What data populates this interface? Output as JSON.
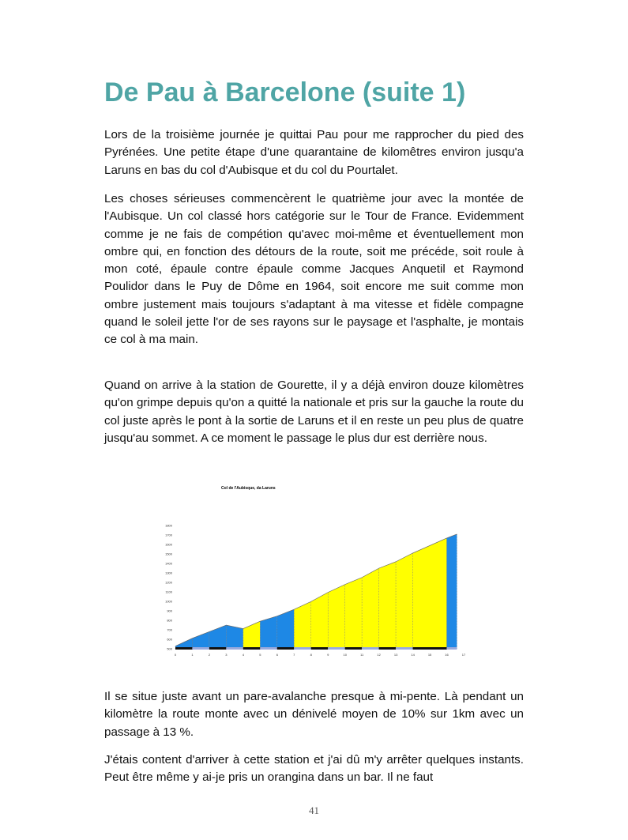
{
  "title": "De Pau à Barcelone (suite 1)",
  "paragraphs": [
    "Lors de la troisième journée je quittai Pau pour me rapprocher du pied des Pyrénées. Une petite étape d'une quarantaine de kilomêtres environ jusqu'a Laruns en bas du col d'Aubisque et du col du Pourtalet.",
    "Les choses sérieuses commencèrent le quatrième jour avec la montée de l'Aubisque. Un col classé hors catégorie sur le Tour de France. Evidemment comme je ne fais de compétion qu'avec moi-même et éventuellement mon ombre qui, en fonction des détours de la route, soit me précéde, soit roule à mon coté, épaule contre épaule comme Jacques Anquetil et Raymond Poulidor dans le Puy de Dôme en 1964, soit encore me suit comme mon ombre justement mais toujours s'adaptant à ma vitesse et fidèle compagne quand le soleil jette l'or de ses rayons sur le paysage et l'asphalte, je montais ce col à ma main.",
    "Quand on arrive à la station de Gourette, il y a déjà environ douze kilomètres qu'on grimpe depuis qu'on a quitté la nationale et pris sur la gauche la route du col juste après le pont à la sortie de Laruns et il en reste un peu plus de quatre jusqu'au sommet. A ce moment le passage le plus dur est derrière nous.",
    "Il se situe juste avant un pare-avalanche presque à mi-pente. Là pendant un kilomètre la route monte avec un dénivelé moyen de 10% sur 1km avec un passage à 13 %.",
    "J'étais content d'arriver à cette station et j'ai dû m'y arrêter quelques instants. Peut être même y ai-je pris un orangina dans un bar. Il ne faut"
  ],
  "page_number": "41",
  "chart_data": {
    "type": "area",
    "title": "Col de l'Aubisque, da Laruns",
    "x": [
      0,
      1,
      2,
      3,
      4,
      5,
      6,
      7,
      8,
      9,
      10,
      11,
      12,
      13,
      14,
      16,
      16.6
    ],
    "y": [
      528,
      611,
      680,
      749,
      712,
      790,
      845,
      915,
      998,
      1095,
      1178,
      1252,
      1349,
      1418,
      1509,
      1667,
      1709
    ],
    "xlim": [
      0,
      17
    ],
    "ylim": [
      500,
      1800
    ],
    "xticks": [
      "0",
      "1",
      "2",
      "3",
      "4",
      "5",
      "6",
      "7",
      "8",
      "9",
      "10",
      "11",
      "12",
      "13",
      "14",
      "15",
      "16",
      "17"
    ],
    "yticks": [
      "500",
      "600",
      "700",
      "800",
      "900",
      "1000",
      "1100",
      "1200",
      "1300",
      "1400",
      "1500",
      "1600",
      "1700",
      "1800"
    ],
    "segment_colors": [
      "#1e88e5",
      "#1e88e5",
      "#1e88e5",
      "#1e88e5",
      "#ffff00",
      "#1e88e5",
      "#1e88e5",
      "#ffff00",
      "#ffff00",
      "#ffff00",
      "#ffff00",
      "#ffff00",
      "#ffff00",
      "#ffff00",
      "#ffff00",
      "#1e88e5"
    ]
  }
}
